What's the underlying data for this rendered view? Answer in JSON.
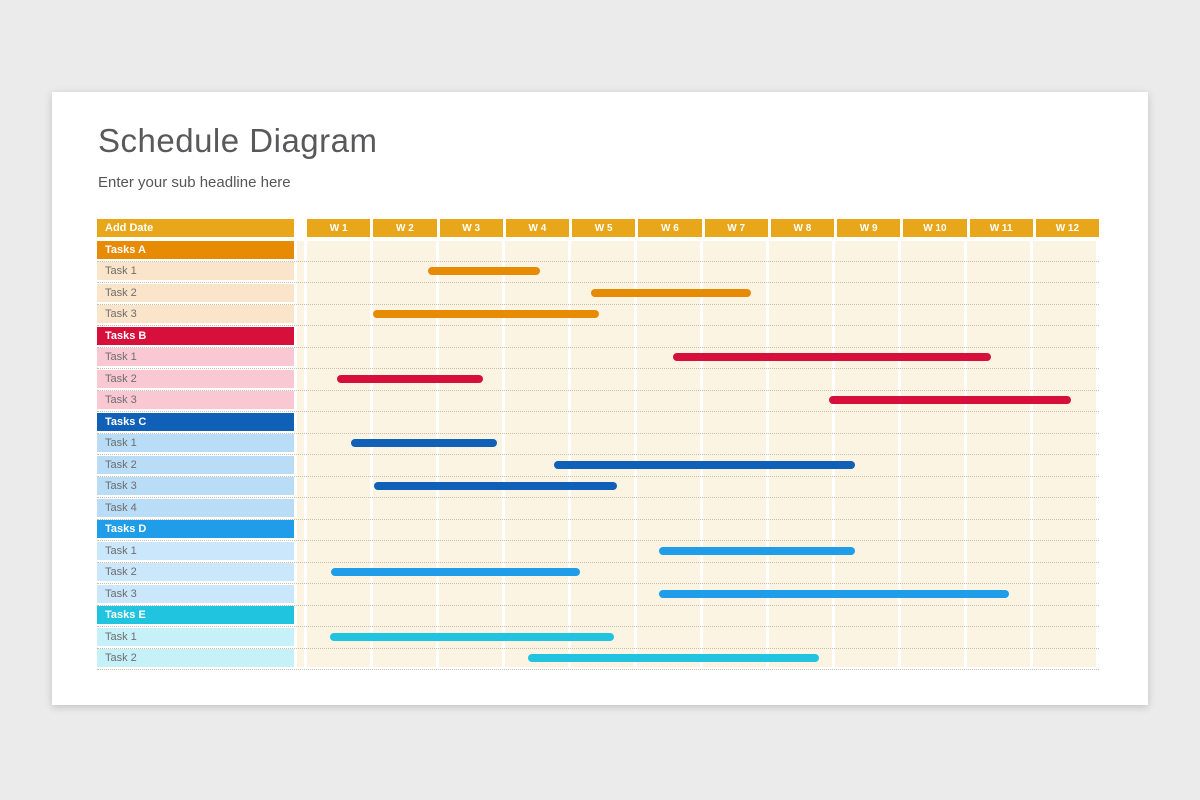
{
  "page": {
    "background_color": "#EBEBEB",
    "card_color": "#FFFFFF"
  },
  "header": {
    "title": "Schedule Diagram",
    "subtitle": "Enter your sub headline here"
  },
  "table": {
    "corner_label": "Add Date",
    "header_color": "#E8A61A",
    "weeks": [
      "W 1",
      "W 2",
      "W 3",
      "W 4",
      "W 5",
      "W 6",
      "W 7",
      "W 8",
      "W 9",
      "W 10",
      "W 11",
      "W 12"
    ]
  },
  "chart_data": {
    "type": "bar",
    "variant": "gantt",
    "title": "Schedule Diagram",
    "subtitle": "Enter your sub headline here",
    "x_axis": {
      "unit": "weeks",
      "labels": [
        "W 1",
        "W 2",
        "W 3",
        "W 4",
        "W 5",
        "W 6",
        "W 7",
        "W 8",
        "W 9",
        "W 10",
        "W 11",
        "W 12"
      ],
      "range": [
        0,
        12
      ],
      "grid": true
    },
    "chart_background": "#FBF4E2",
    "legend": "none",
    "groups": [
      {
        "name": "Tasks A",
        "color": "#E78A04",
        "bar_color": "#E78A04",
        "row_background": "#FAE4CA",
        "tasks": [
          {
            "label": "Task 1",
            "start_week": 1.83,
            "end_week": 3.53
          },
          {
            "label": "Task 2",
            "start_week": 4.3,
            "end_week": 6.73
          },
          {
            "label": "Task 3",
            "start_week": 1.0,
            "end_week": 4.42
          }
        ]
      },
      {
        "name": "Tasks B",
        "color": "#D6103B",
        "bar_color": "#D6103B",
        "row_background": "#F9C8D3",
        "tasks": [
          {
            "label": "Task 1",
            "start_week": 5.55,
            "end_week": 10.36
          },
          {
            "label": "Task 2",
            "start_week": 0.45,
            "end_week": 2.67
          },
          {
            "label": "Task 3",
            "start_week": 7.91,
            "end_week": 11.58
          }
        ]
      },
      {
        "name": "Tasks C",
        "color": "#1160B7",
        "bar_color": "#1160B7",
        "row_background": "#B9DCF7",
        "tasks": [
          {
            "label": "Task 1",
            "start_week": 0.67,
            "end_week": 2.88
          },
          {
            "label": "Task 2",
            "start_week": 3.74,
            "end_week": 8.3
          },
          {
            "label": "Task 3",
            "start_week": 1.02,
            "end_week": 4.7
          },
          {
            "label": "Task 4",
            "start_week": null,
            "end_week": null
          }
        ]
      },
      {
        "name": "Tasks D",
        "color": "#1F9DE9",
        "bar_color": "#1F9DE9",
        "row_background": "#CAE7FB",
        "tasks": [
          {
            "label": "Task 1",
            "start_week": 5.33,
            "end_week": 8.3
          },
          {
            "label": "Task 2",
            "start_week": 0.36,
            "end_week": 4.14
          },
          {
            "label": "Task 3",
            "start_week": 5.33,
            "end_week": 10.64
          }
        ]
      },
      {
        "name": "Tasks E",
        "color": "#20C4DF",
        "bar_color": "#20C4DF",
        "row_background": "#C7F1F8",
        "tasks": [
          {
            "label": "Task 1",
            "start_week": 0.35,
            "end_week": 4.65
          },
          {
            "label": "Task 2",
            "start_week": 3.35,
            "end_week": 7.76
          }
        ]
      }
    ]
  }
}
